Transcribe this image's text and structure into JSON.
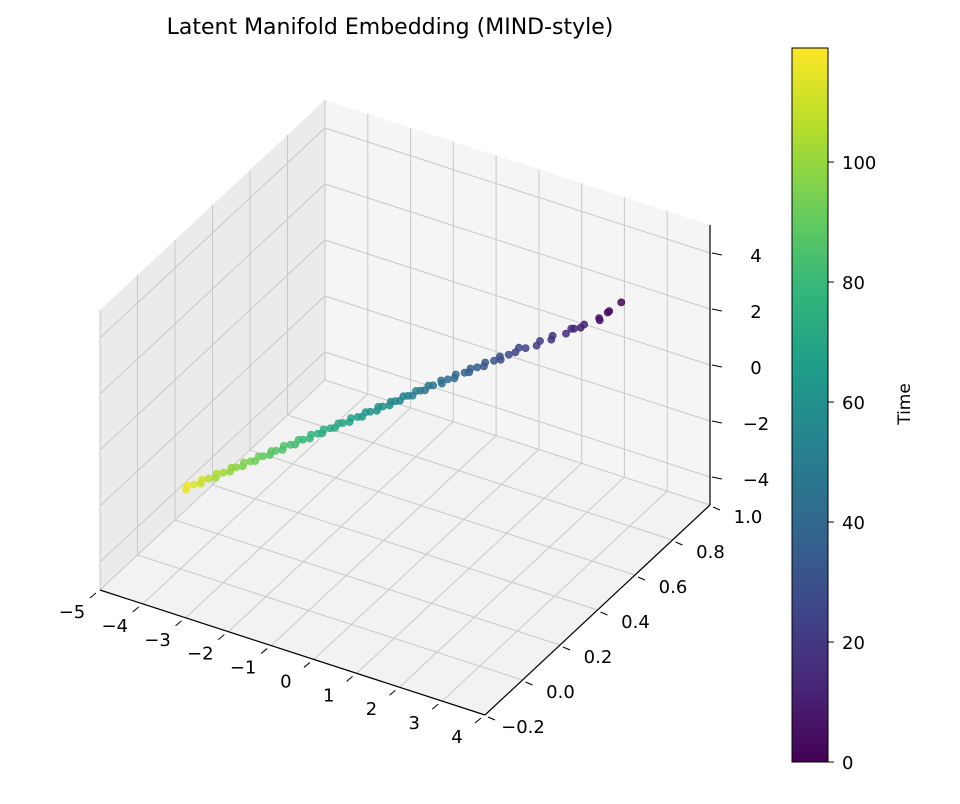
{
  "chart_data": {
    "type": "scatter",
    "projection": "3d",
    "title": "Latent Manifold Embedding (MIND-style)",
    "xlabel": "",
    "ylabel": "",
    "zlabel": "",
    "xlim": [
      -5,
      4
    ],
    "ylim": [
      -0.2,
      1.0
    ],
    "zlim": [
      -5,
      5
    ],
    "x_ticks": [
      "−5",
      "−4",
      "−3",
      "−2",
      "−1",
      "0",
      "1",
      "2",
      "3",
      "4"
    ],
    "y_ticks": [
      "−0.2",
      "0.0",
      "0.2",
      "0.4",
      "0.6",
      "0.8",
      "1.0"
    ],
    "z_ticks": [
      "−4",
      "−2",
      "0",
      "2",
      "4"
    ],
    "colorbar": {
      "label": "Time",
      "colormap": "viridis",
      "range": [
        0,
        119
      ],
      "ticks": [
        "0",
        "20",
        "40",
        "60",
        "80",
        "100"
      ]
    },
    "colormap_stops": [
      "#440154",
      "#482878",
      "#3e4989",
      "#31688e",
      "#26828e",
      "#1f9e89",
      "#35b779",
      "#6ece58",
      "#b5de2b",
      "#fde725"
    ],
    "points": {
      "x": [
        3.9,
        3.8,
        3.75,
        3.7,
        3.6,
        3.3,
        3.25,
        3.1,
        3.0,
        2.95,
        2.7,
        2.6,
        2.4,
        2.35,
        2.1,
        1.95,
        1.9,
        1.75,
        1.65,
        1.5,
        1.45,
        1.3,
        1.2,
        1.1,
        1.0,
        0.9,
        0.85,
        0.7,
        0.6,
        0.5,
        0.45,
        0.3,
        0.2,
        0.1,
        0.05,
        -0.05,
        -0.15,
        -0.2,
        -0.3,
        -0.4,
        -0.45,
        -0.55,
        -0.6,
        -0.7,
        -0.8,
        -0.85,
        -0.95,
        -1.05,
        -1.15,
        -1.2,
        -1.3,
        -1.4,
        -1.5,
        -1.6,
        -1.7,
        -1.75,
        -1.85,
        -1.95,
        -2.05,
        -2.1,
        -2.2,
        -2.3,
        -2.4,
        -2.5,
        -2.55,
        -2.65,
        -2.75,
        -2.85,
        -2.95,
        -3.0,
        -3.1,
        -3.2,
        -3.3,
        -3.35,
        -3.45,
        -3.55,
        -3.65,
        -3.75,
        -3.8,
        -3.9,
        -4.0,
        -4.1,
        -4.2,
        -4.3,
        -4.4,
        -4.5,
        -4.6,
        -4.7,
        -4.8
      ],
      "y": [
        0.55,
        0.5,
        0.52,
        0.48,
        0.5,
        0.47,
        0.5,
        0.48,
        0.46,
        0.5,
        0.45,
        0.48,
        0.44,
        0.47,
        0.45,
        0.43,
        0.46,
        0.44,
        0.42,
        0.45,
        0.43,
        0.41,
        0.44,
        0.42,
        0.4,
        0.43,
        0.41,
        0.39,
        0.42,
        0.4,
        0.38,
        0.41,
        0.39,
        0.37,
        0.4,
        0.38,
        0.36,
        0.39,
        0.37,
        0.35,
        0.38,
        0.36,
        0.34,
        0.37,
        0.35,
        0.33,
        0.36,
        0.34,
        0.32,
        0.35,
        0.33,
        0.31,
        0.34,
        0.32,
        0.3,
        0.33,
        0.31,
        0.29,
        0.32,
        0.3,
        0.28,
        0.31,
        0.29,
        0.27,
        0.3,
        0.28,
        0.26,
        0.29,
        0.27,
        0.25,
        0.28,
        0.26,
        0.24,
        0.27,
        0.25,
        0.23,
        0.26,
        0.24,
        0.22,
        0.25,
        0.23,
        0.21,
        0.24,
        0.22,
        0.2,
        0.23,
        0.21,
        0.19,
        0.22
      ],
      "z": [
        5.0,
        4.9,
        4.8,
        4.7,
        4.6,
        4.3,
        4.2,
        4.1,
        4.0,
        3.9,
        3.7,
        3.6,
        3.4,
        3.35,
        3.1,
        3.0,
        2.95,
        2.75,
        2.65,
        2.5,
        2.45,
        2.3,
        2.2,
        2.1,
        2.0,
        1.9,
        1.85,
        1.7,
        1.6,
        1.5,
        1.45,
        1.3,
        1.2,
        1.1,
        1.05,
        0.95,
        0.85,
        0.8,
        0.7,
        0.6,
        0.55,
        0.45,
        0.4,
        0.3,
        0.2,
        0.15,
        0.05,
        -0.05,
        -0.15,
        -0.2,
        -0.3,
        -0.4,
        -0.5,
        -0.6,
        -0.7,
        -0.75,
        -0.85,
        -0.95,
        -1.05,
        -1.1,
        -1.2,
        -1.3,
        -1.4,
        -1.5,
        -1.55,
        -1.65,
        -1.75,
        -1.85,
        -1.95,
        -2.0,
        -2.1,
        -2.2,
        -2.3,
        -2.35,
        -2.45,
        -2.55,
        -2.65,
        -2.75,
        -2.8,
        -2.9,
        -3.0,
        -3.1,
        -3.2,
        -3.3,
        -3.4,
        -3.5,
        -3.6,
        -3.7,
        -3.8
      ],
      "t": [
        2,
        3,
        5,
        6,
        7,
        10,
        12,
        13,
        15,
        16,
        18,
        19,
        21,
        22,
        24,
        25,
        26,
        28,
        29,
        30,
        31,
        33,
        34,
        35,
        36,
        37,
        38,
        40,
        41,
        42,
        43,
        45,
        46,
        47,
        48,
        49,
        50,
        51,
        53,
        54,
        55,
        56,
        57,
        58,
        60,
        61,
        62,
        63,
        64,
        65,
        66,
        67,
        69,
        70,
        71,
        72,
        73,
        74,
        76,
        77,
        78,
        79,
        80,
        82,
        83,
        84,
        85,
        86,
        87,
        88,
        89,
        90,
        92,
        93,
        94,
        95,
        96,
        98,
        99,
        100,
        102,
        103,
        105,
        107,
        109,
        111,
        113,
        115,
        117
      ]
    }
  }
}
